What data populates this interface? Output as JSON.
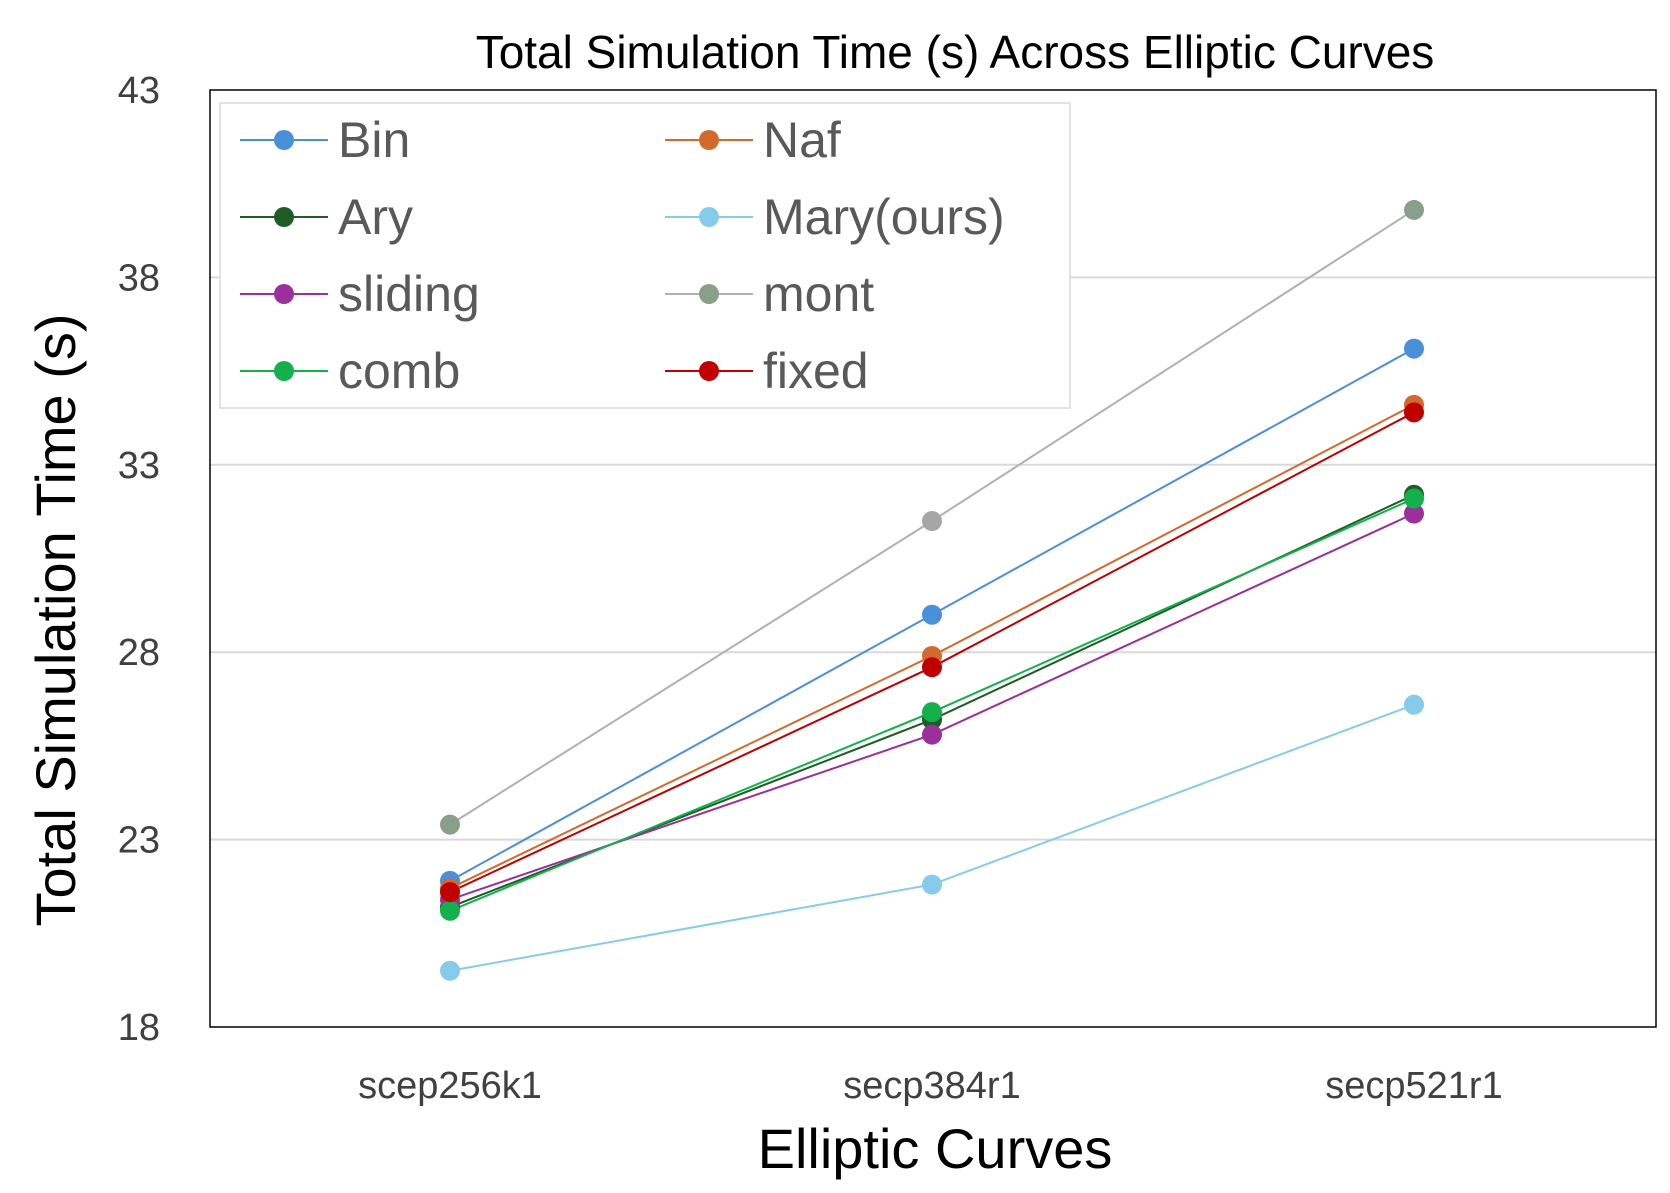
{
  "chart_data": {
    "type": "line",
    "title": "Total Simulation Time (s) Across Elliptic Curves",
    "xlabel": "Elliptic Curves",
    "ylabel": "Total Simulation Time (s)",
    "categories": [
      "scep256k1",
      "secp384r1",
      "secp521r1"
    ],
    "ylim": [
      18,
      43
    ],
    "yticks": [
      18,
      23,
      28,
      33,
      38,
      43
    ],
    "grid": true,
    "legend_position": "top-left",
    "series": [
      {
        "name": "Bin",
        "color": "#4a90d9",
        "values": [
          21.9,
          29.0,
          36.1
        ]
      },
      {
        "name": "Naf",
        "color": "#d4692d",
        "values": [
          21.7,
          27.9,
          34.6
        ]
      },
      {
        "name": "Ary",
        "color": "#1e5e26",
        "values": [
          21.2,
          26.2,
          32.2
        ]
      },
      {
        "name": "Mary(ours)",
        "color": "#86cbea",
        "values": [
          19.5,
          21.8,
          26.6
        ]
      },
      {
        "name": "sliding",
        "color": "#9b2f9b",
        "values": [
          21.4,
          25.8,
          31.7
        ]
      },
      {
        "name": "mont",
        "color": "#8a9f8a",
        "line_color": "#b0b0b0",
        "values": [
          23.4,
          31.5,
          39.8
        ]
      },
      {
        "name": "comb",
        "color": "#13b04b",
        "values": [
          21.1,
          26.4,
          32.1
        ]
      },
      {
        "name": "fixed",
        "color": "#c00000",
        "values": [
          21.6,
          27.6,
          34.4
        ]
      }
    ]
  }
}
